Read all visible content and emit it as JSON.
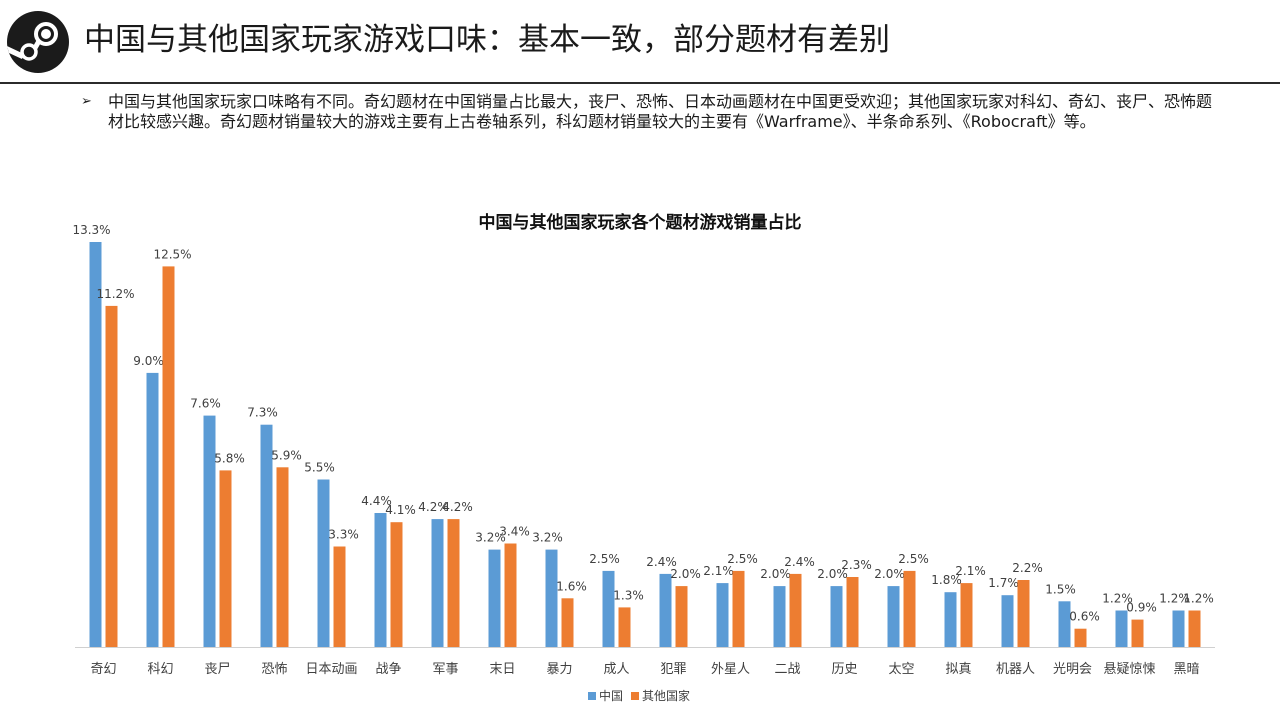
{
  "page": {
    "title": "中国与其他国家玩家游戏口味：基本一致，部分题材有差别",
    "bullet": "中国与其他国家玩家口味略有不同。奇幻题材在中国销量占比最大，丧尸、恐怖、日本动画题材在中国更受欢迎；其他国家玩家对科幻、奇幻、丧尸、恐怖题材比较感兴趣。奇幻题材销量较大的游戏主要有上古卷轴系列，科幻题材销量较大的主要有《Warframe》、半条命系列、《Robocraft》等。",
    "logo_icon": "steam-logo-icon"
  },
  "chart_data": {
    "type": "bar",
    "title": "中国与其他国家玩家各个题材游戏销量占比",
    "categories": [
      "奇幻",
      "科幻",
      "丧尸",
      "恐怖",
      "日本动画",
      "战争",
      "军事",
      "末日",
      "暴力",
      "成人",
      "犯罪",
      "外星人",
      "二战",
      "历史",
      "太空",
      "拟真",
      "机器人",
      "光明会",
      "悬疑惊悚",
      "黑暗"
    ],
    "series": [
      {
        "name": "中国",
        "color": "#5b9bd5",
        "values": [
          13.3,
          9.0,
          7.6,
          7.3,
          5.5,
          4.4,
          4.2,
          3.2,
          3.2,
          2.5,
          2.4,
          2.1,
          2.0,
          2.0,
          2.0,
          1.8,
          1.7,
          1.5,
          1.2,
          1.2
        ],
        "labels": [
          "13.3%",
          "9.0%",
          "7.6%",
          "7.3%",
          "5.5%",
          "4.4%",
          "4.2%",
          "3.2%",
          "3.2%",
          "2.5%",
          "2.4%",
          "2.1%",
          "2.0%",
          "2.0%",
          "2.0%",
          "1.8%",
          "1.7%",
          "1.5%",
          "1.2%",
          "1.2%"
        ]
      },
      {
        "name": "其他国家",
        "color": "#ed7d31",
        "values": [
          11.2,
          12.5,
          5.8,
          5.9,
          3.3,
          4.1,
          4.2,
          3.4,
          1.6,
          1.3,
          2.0,
          2.5,
          2.4,
          2.3,
          2.5,
          2.1,
          2.2,
          0.6,
          0.9,
          1.2
        ],
        "labels": [
          "11.2%",
          "12.5%",
          "5.8%",
          "5.9%",
          "3.3%",
          "4.1%",
          "4.2%",
          "3.4%",
          "1.6%",
          "1.3%",
          "2.0%",
          "2.5%",
          "2.4%",
          "2.3%",
          "2.5%",
          "2.1%",
          "2.2%",
          "0.6%",
          "0.9%",
          "1.2%"
        ]
      }
    ],
    "ylim": [
      0,
      13.3
    ],
    "grid": false,
    "legend": "bottom-center"
  }
}
